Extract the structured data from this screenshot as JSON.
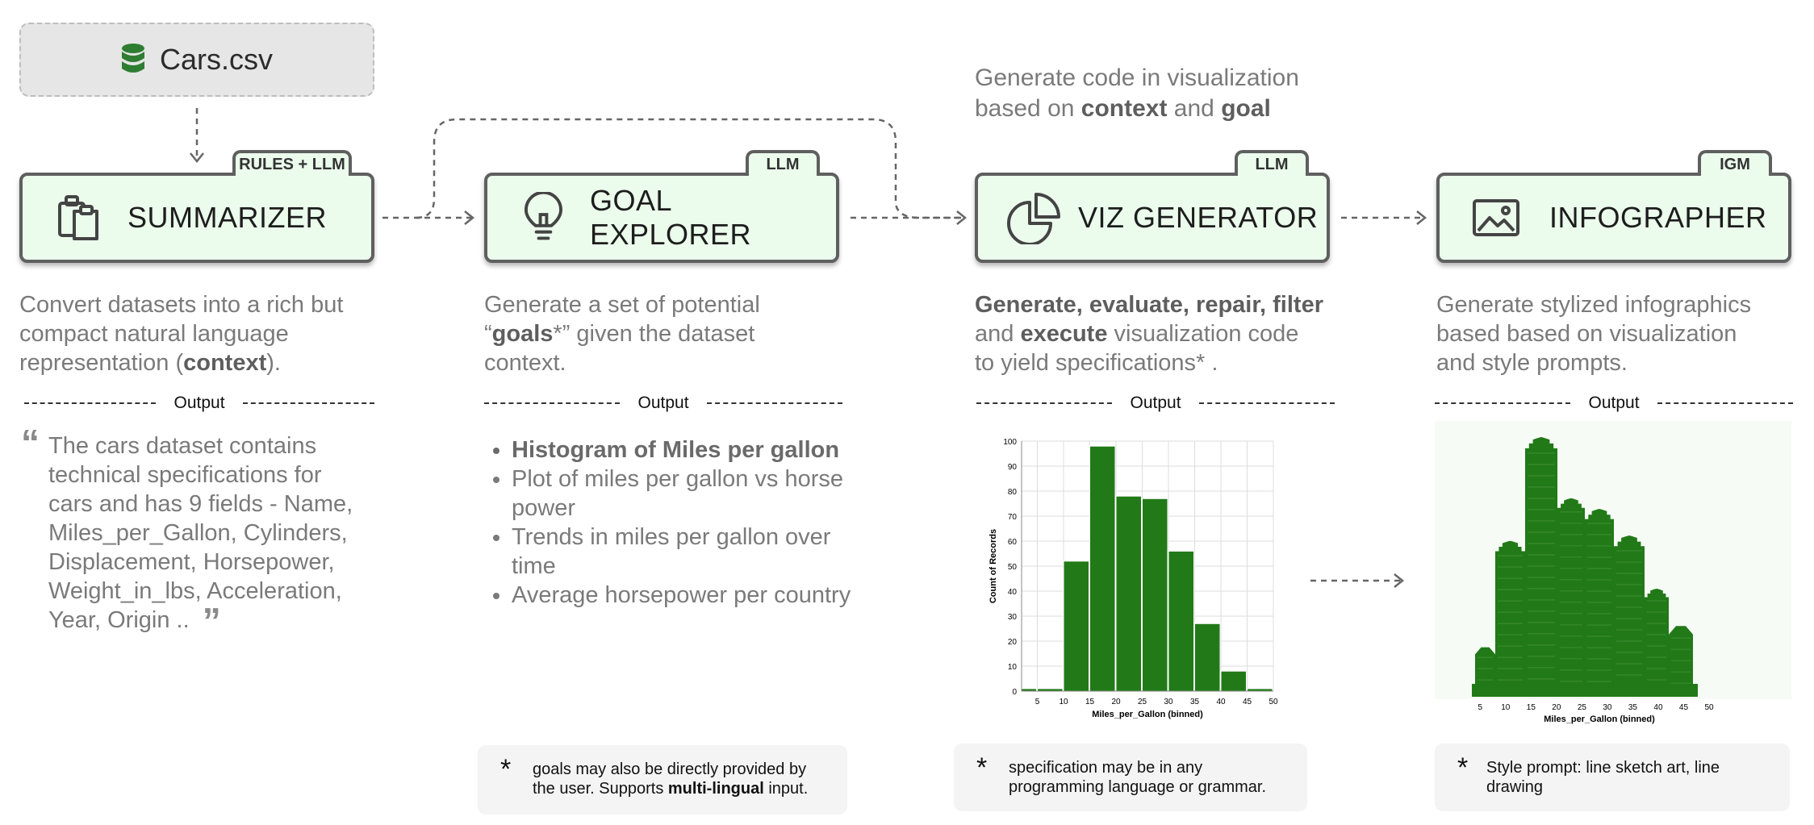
{
  "source": {
    "name": "Cars.csv",
    "icon": "database-icon",
    "icon_color": "#2e7d32"
  },
  "top_note": {
    "prefix": "Generate code in visualization",
    "line2_a": "based on ",
    "bold1": "context",
    "mid": " and ",
    "bold2": "goal"
  },
  "stages": [
    {
      "tag": "RULES + LLM",
      "title": "SUMMARIZER",
      "icon": "clipboard-icon"
    },
    {
      "tag": "LLM",
      "title": "GOAL EXPLORER",
      "icon": "lightbulb-icon"
    },
    {
      "tag": "LLM",
      "title": "VIZ GENERATOR",
      "icon": "pie-chart-icon"
    },
    {
      "tag": "IGM",
      "title": "INFOGRAPHER",
      "icon": "image-icon"
    }
  ],
  "descriptions": {
    "summarizer": {
      "a": "Convert datasets into a rich but",
      "b": "compact natural language",
      "c": "representation (",
      "bold": "context",
      "d": ")."
    },
    "goal": {
      "a": "Generate a set of potential",
      "b_open": "“",
      "bold": "goals",
      "b_rest": "*” given the dataset",
      "c": "context."
    },
    "viz": {
      "bold1": "Generate, evaluate, repair, filter",
      "b_a": "and ",
      "bold2": "execute",
      "b_rest": " visualization code",
      "c": "to yield specifications* ."
    },
    "info": {
      "a": "Generate stylized infographics",
      "b": "based based on visualization",
      "c": "and style prompts."
    }
  },
  "output_label": "Output",
  "summary_quote": {
    "open": "“",
    "lines": [
      "The cars dataset contains",
      "technical specifications for",
      "cars and has 9 fields - Name,",
      "Miles_per_Gallon, Cylinders,",
      "Displacement, Horsepower,",
      "Weight_in_lbs, Acceleration,",
      "Year, Origin .."
    ],
    "close": "”"
  },
  "goals": [
    "Histogram of Miles per gallon",
    "Plot of miles per gallon vs horse power",
    "Trends in miles per gallon over time",
    "Average horsepower per country"
  ],
  "notes": {
    "goal": {
      "star": "*",
      "line1": "goals may also be directly provided by",
      "line2_a": "the user. Supports ",
      "bold": "multi-lingual",
      "line2_b": " input."
    },
    "viz": {
      "star": "*",
      "line1": "specification may be in any",
      "line2": "programming language or grammar."
    },
    "info": {
      "star": "*",
      "line1": "Style prompt: line sketch art, line",
      "line2": "drawing"
    }
  },
  "chart_data": [
    {
      "type": "bar",
      "x": [
        0,
        5,
        10,
        15,
        20,
        25,
        30,
        35,
        40,
        45
      ],
      "bin_width": 5,
      "values": [
        1,
        1,
        52,
        98,
        78,
        77,
        56,
        27,
        8,
        1
      ],
      "xlabel": "Miles_per_Gallon (binned)",
      "ylabel": "Count of Records",
      "xticks": [
        5,
        10,
        15,
        20,
        25,
        30,
        35,
        40,
        45,
        50
      ],
      "yticks": [
        0,
        10,
        20,
        30,
        40,
        50,
        60,
        70,
        80,
        90,
        100
      ],
      "xlim": [
        2,
        50
      ],
      "ylim": [
        0,
        100
      ],
      "grid": true,
      "color": "#217a17"
    },
    {
      "type": "bar",
      "xlabel": "Miles_per_Gallon (binned)",
      "xticks": [
        5,
        10,
        15,
        20,
        25,
        30,
        35,
        40,
        45,
        50
      ],
      "color": "#217a17"
    }
  ]
}
